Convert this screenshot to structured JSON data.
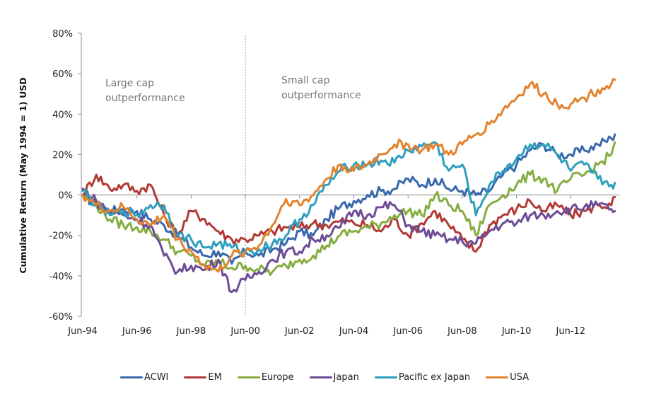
{
  "chart_data": {
    "type": "line",
    "title": "",
    "xlabel": "",
    "ylabel": "Cumulative Return (May 1994 = 1) USD",
    "ylim": [
      -60,
      80
    ],
    "yticks": [
      -60,
      -40,
      -20,
      0,
      20,
      40,
      60,
      80
    ],
    "ytick_labels": [
      "-60%",
      "-40%",
      "-20%",
      "0%",
      "20%",
      "40%",
      "60%",
      "80%"
    ],
    "xlim": [
      1994.42,
      2014.1
    ],
    "xticks": [
      1994.42,
      1996.42,
      1998.42,
      2000.42,
      2002.42,
      2004.42,
      2006.42,
      2008.42,
      2010.42,
      2012.42
    ],
    "xtick_labels": [
      "Jun-94",
      "Jun-96",
      "Jun-98",
      "Jun-00",
      "Jun-02",
      "Jun-04",
      "Jun-06",
      "Jun-08",
      "Jun-10",
      "Jun-12"
    ],
    "grid": false,
    "legend_position": "bottom",
    "divider": {
      "x": 2000.42,
      "style": "dotted"
    },
    "annotations": [
      {
        "text_line1": "Large cap",
        "text_line2": "outperformance",
        "region": "before Jun-00"
      },
      {
        "text_line1": "Small cap",
        "text_line2": "outperformance",
        "region": "after Jun-00"
      }
    ],
    "x": [
      1994.42,
      1994.92,
      1995.42,
      1995.92,
      1996.42,
      1996.92,
      1997.42,
      1997.92,
      1998.42,
      1998.92,
      1999.42,
      1999.92,
      2000.42,
      2000.92,
      2001.42,
      2001.92,
      2002.42,
      2002.92,
      2003.42,
      2003.92,
      2004.42,
      2004.92,
      2005.42,
      2005.92,
      2006.42,
      2006.92,
      2007.42,
      2007.92,
      2008.42,
      2008.92,
      2009.42,
      2009.92,
      2010.42,
      2010.92,
      2011.42,
      2011.92,
      2012.42,
      2012.92,
      2013.42,
      2013.92,
      2014.05
    ],
    "series": [
      {
        "name": "ACWI",
        "color": "#3a68ad",
        "values": [
          0,
          -5,
          -8,
          -7,
          -8,
          -12,
          -15,
          -20,
          -26,
          -30,
          -28,
          -34,
          -28,
          -30,
          -27,
          -24,
          -18,
          -20,
          -12,
          -6,
          -3,
          0,
          2,
          3,
          8,
          5,
          8,
          3,
          2,
          0,
          2,
          10,
          15,
          22,
          25,
          20,
          20,
          22,
          25,
          28,
          30
        ]
      },
      {
        "name": "EM",
        "color": "#b23a35",
        "values": [
          0,
          10,
          3,
          5,
          2,
          5,
          -10,
          -20,
          -8,
          -12,
          -18,
          -22,
          -22,
          -20,
          -18,
          -16,
          -16,
          -14,
          -15,
          -13,
          -14,
          -15,
          -18,
          -12,
          -20,
          -14,
          -8,
          -15,
          -22,
          -28,
          -15,
          -10,
          -7,
          -3,
          -8,
          -5,
          -10,
          -8,
          -5,
          -5,
          -1
        ]
      },
      {
        "name": "Europe",
        "color": "#86ad41",
        "values": [
          0,
          -5,
          -12,
          -15,
          -16,
          -18,
          -22,
          -28,
          -30,
          -35,
          -33,
          -36,
          -35,
          -37,
          -38,
          -35,
          -32,
          -30,
          -25,
          -20,
          -18,
          -16,
          -14,
          -10,
          -8,
          -10,
          0,
          -5,
          -8,
          -20,
          -5,
          0,
          5,
          10,
          8,
          2,
          8,
          10,
          15,
          20,
          26
        ]
      },
      {
        "name": "Japan",
        "color": "#6d4c96",
        "values": [
          3,
          -3,
          -8,
          -10,
          -12,
          -15,
          -30,
          -38,
          -35,
          -37,
          -32,
          -48,
          -42,
          -38,
          -32,
          -28,
          -28,
          -22,
          -20,
          -16,
          -8,
          -10,
          -6,
          -5,
          -15,
          -18,
          -20,
          -22,
          -23,
          -24,
          -18,
          -14,
          -14,
          -10,
          -10,
          -8,
          -7,
          -6,
          -5,
          -7,
          -8
        ]
      },
      {
        "name": "Pacific ex Japan",
        "color": "#2e9fbd",
        "values": [
          2,
          -5,
          -10,
          -8,
          -10,
          -5,
          -5,
          -20,
          -22,
          -26,
          -24,
          -26,
          -28,
          -27,
          -24,
          -20,
          -12,
          -5,
          5,
          12,
          15,
          15,
          17,
          16,
          22,
          24,
          26,
          12,
          15,
          -10,
          5,
          12,
          18,
          25,
          25,
          20,
          12,
          15,
          8,
          5,
          6
        ]
      },
      {
        "name": "USA",
        "color": "#e2832f",
        "values": [
          0,
          -5,
          -8,
          -6,
          -12,
          -15,
          -10,
          -22,
          -28,
          -35,
          -38,
          -30,
          -28,
          -25,
          -15,
          -2,
          -5,
          0,
          8,
          15,
          12,
          15,
          20,
          25,
          25,
          22,
          25,
          20,
          25,
          30,
          35,
          42,
          48,
          55,
          50,
          45,
          45,
          48,
          52,
          55,
          57
        ]
      }
    ]
  },
  "legend": {
    "items": [
      {
        "label": "ACWI",
        "color": "#3a68ad"
      },
      {
        "label": "EM",
        "color": "#b23a35"
      },
      {
        "label": "Europe",
        "color": "#86ad41"
      },
      {
        "label": "Japan",
        "color": "#6d4c96"
      },
      {
        "label": "Pacific ex Japan",
        "color": "#2e9fbd"
      },
      {
        "label": "USA",
        "color": "#e2832f"
      }
    ]
  }
}
